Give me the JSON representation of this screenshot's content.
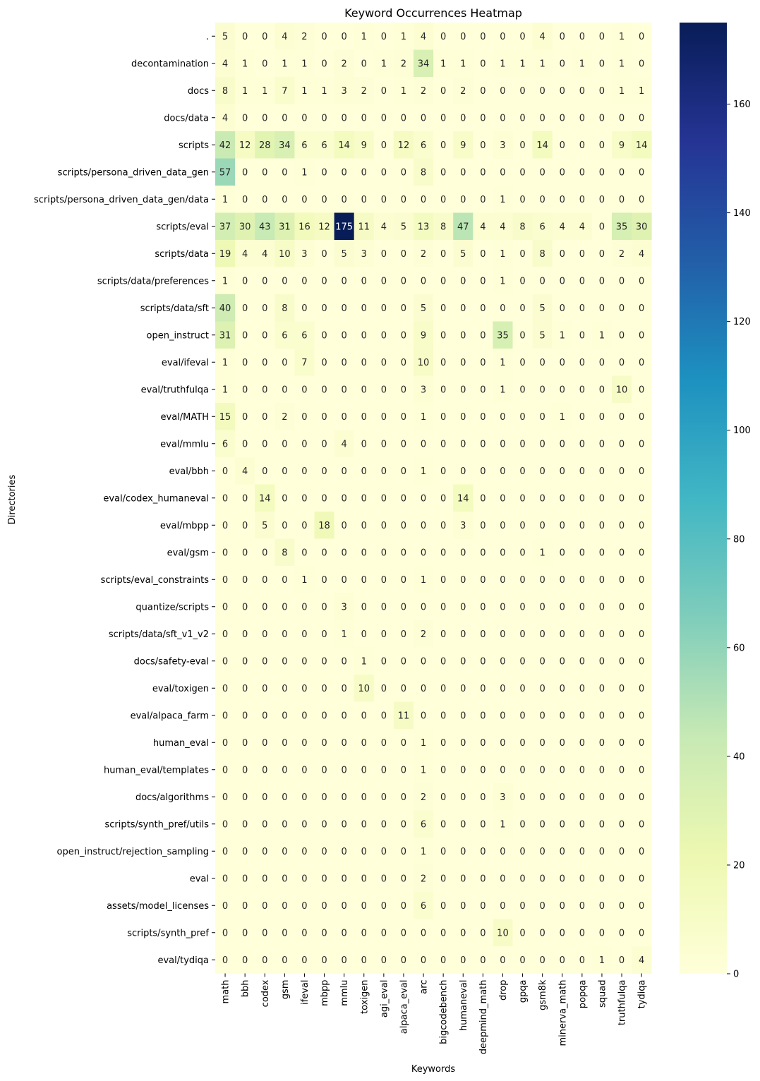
{
  "chart_data": {
    "type": "heatmap",
    "title": "Keyword Occurrences Heatmap",
    "xlabel": "Keywords",
    "ylabel": "Directories",
    "colormap": "YlGnBu",
    "vmin": 0,
    "vmax": 175,
    "colorbar_ticks": [
      0,
      20,
      40,
      60,
      80,
      100,
      120,
      140,
      160
    ],
    "columns": [
      "math",
      "bbh",
      "codex",
      "gsm",
      "ifeval",
      "mbpp",
      "mmlu",
      "toxigen",
      "agi_eval",
      "alpaca_eval",
      "arc",
      "bigcodebench",
      "humaneval",
      "deepmind_math",
      "drop",
      "gpqa",
      "gsm8k",
      "minerva_math",
      "popqa",
      "squad",
      "truthfulqa",
      "tydiqa"
    ],
    "rows": [
      ".",
      "decontamination",
      "docs",
      "docs/data",
      "scripts",
      "scripts/persona_driven_data_gen",
      "scripts/persona_driven_data_gen/data",
      "scripts/eval",
      "scripts/data",
      "scripts/data/preferences",
      "scripts/data/sft",
      "open_instruct",
      "eval/ifeval",
      "eval/truthfulqa",
      "eval/MATH",
      "eval/mmlu",
      "eval/bbh",
      "eval/codex_humaneval",
      "eval/mbpp",
      "eval/gsm",
      "scripts/eval_constraints",
      "quantize/scripts",
      "scripts/data/sft_v1_v2",
      "docs/safety-eval",
      "eval/toxigen",
      "eval/alpaca_farm",
      "human_eval",
      "human_eval/templates",
      "docs/algorithms",
      "scripts/synth_pref/utils",
      "open_instruct/rejection_sampling",
      "eval",
      "assets/model_licenses",
      "scripts/synth_pref",
      "eval/tydiqa"
    ],
    "values": [
      [
        5,
        0,
        0,
        4,
        2,
        0,
        0,
        1,
        0,
        1,
        4,
        0,
        0,
        0,
        0,
        0,
        4,
        0,
        0,
        0,
        1,
        0
      ],
      [
        4,
        1,
        0,
        1,
        1,
        0,
        2,
        0,
        1,
        2,
        34,
        1,
        1,
        0,
        1,
        1,
        1,
        0,
        1,
        0,
        1,
        0
      ],
      [
        8,
        1,
        1,
        7,
        1,
        1,
        3,
        2,
        0,
        1,
        2,
        0,
        2,
        0,
        0,
        0,
        0,
        0,
        0,
        0,
        1,
        1
      ],
      [
        4,
        0,
        0,
        0,
        0,
        0,
        0,
        0,
        0,
        0,
        0,
        0,
        0,
        0,
        0,
        0,
        0,
        0,
        0,
        0,
        0,
        0
      ],
      [
        42,
        12,
        28,
        34,
        6,
        6,
        14,
        9,
        0,
        12,
        6,
        0,
        9,
        0,
        3,
        0,
        14,
        0,
        0,
        0,
        9,
        14
      ],
      [
        57,
        0,
        0,
        0,
        1,
        0,
        0,
        0,
        0,
        0,
        8,
        0,
        0,
        0,
        0,
        0,
        0,
        0,
        0,
        0,
        0,
        0
      ],
      [
        1,
        0,
        0,
        0,
        0,
        0,
        0,
        0,
        0,
        0,
        0,
        0,
        0,
        0,
        1,
        0,
        0,
        0,
        0,
        0,
        0,
        0
      ],
      [
        37,
        30,
        43,
        31,
        16,
        12,
        175,
        11,
        4,
        5,
        13,
        8,
        47,
        4,
        4,
        8,
        6,
        4,
        4,
        0,
        35,
        30
      ],
      [
        19,
        4,
        4,
        10,
        3,
        0,
        5,
        3,
        0,
        0,
        2,
        0,
        5,
        0,
        1,
        0,
        8,
        0,
        0,
        0,
        2,
        4
      ],
      [
        1,
        0,
        0,
        0,
        0,
        0,
        0,
        0,
        0,
        0,
        0,
        0,
        0,
        0,
        1,
        0,
        0,
        0,
        0,
        0,
        0,
        0
      ],
      [
        40,
        0,
        0,
        8,
        0,
        0,
        0,
        0,
        0,
        0,
        5,
        0,
        0,
        0,
        0,
        0,
        5,
        0,
        0,
        0,
        0,
        0
      ],
      [
        31,
        0,
        0,
        6,
        6,
        0,
        0,
        0,
        0,
        0,
        9,
        0,
        0,
        0,
        35,
        0,
        5,
        1,
        0,
        1,
        0,
        0
      ],
      [
        1,
        0,
        0,
        0,
        7,
        0,
        0,
        0,
        0,
        0,
        10,
        0,
        0,
        0,
        1,
        0,
        0,
        0,
        0,
        0,
        0,
        0
      ],
      [
        1,
        0,
        0,
        0,
        0,
        0,
        0,
        0,
        0,
        0,
        3,
        0,
        0,
        0,
        1,
        0,
        0,
        0,
        0,
        0,
        10,
        0
      ],
      [
        15,
        0,
        0,
        2,
        0,
        0,
        0,
        0,
        0,
        0,
        1,
        0,
        0,
        0,
        0,
        0,
        0,
        1,
        0,
        0,
        0,
        0
      ],
      [
        6,
        0,
        0,
        0,
        0,
        0,
        4,
        0,
        0,
        0,
        0,
        0,
        0,
        0,
        0,
        0,
        0,
        0,
        0,
        0,
        0,
        0
      ],
      [
        0,
        4,
        0,
        0,
        0,
        0,
        0,
        0,
        0,
        0,
        1,
        0,
        0,
        0,
        0,
        0,
        0,
        0,
        0,
        0,
        0,
        0
      ],
      [
        0,
        0,
        14,
        0,
        0,
        0,
        0,
        0,
        0,
        0,
        0,
        0,
        14,
        0,
        0,
        0,
        0,
        0,
        0,
        0,
        0,
        0
      ],
      [
        0,
        0,
        5,
        0,
        0,
        18,
        0,
        0,
        0,
        0,
        0,
        0,
        3,
        0,
        0,
        0,
        0,
        0,
        0,
        0,
        0,
        0
      ],
      [
        0,
        0,
        0,
        8,
        0,
        0,
        0,
        0,
        0,
        0,
        0,
        0,
        0,
        0,
        0,
        0,
        1,
        0,
        0,
        0,
        0,
        0
      ],
      [
        0,
        0,
        0,
        0,
        1,
        0,
        0,
        0,
        0,
        0,
        1,
        0,
        0,
        0,
        0,
        0,
        0,
        0,
        0,
        0,
        0,
        0
      ],
      [
        0,
        0,
        0,
        0,
        0,
        0,
        3,
        0,
        0,
        0,
        0,
        0,
        0,
        0,
        0,
        0,
        0,
        0,
        0,
        0,
        0,
        0
      ],
      [
        0,
        0,
        0,
        0,
        0,
        0,
        1,
        0,
        0,
        0,
        2,
        0,
        0,
        0,
        0,
        0,
        0,
        0,
        0,
        0,
        0,
        0
      ],
      [
        0,
        0,
        0,
        0,
        0,
        0,
        0,
        1,
        0,
        0,
        0,
        0,
        0,
        0,
        0,
        0,
        0,
        0,
        0,
        0,
        0,
        0
      ],
      [
        0,
        0,
        0,
        0,
        0,
        0,
        0,
        10,
        0,
        0,
        0,
        0,
        0,
        0,
        0,
        0,
        0,
        0,
        0,
        0,
        0,
        0
      ],
      [
        0,
        0,
        0,
        0,
        0,
        0,
        0,
        0,
        0,
        11,
        0,
        0,
        0,
        0,
        0,
        0,
        0,
        0,
        0,
        0,
        0,
        0
      ],
      [
        0,
        0,
        0,
        0,
        0,
        0,
        0,
        0,
        0,
        0,
        1,
        0,
        0,
        0,
        0,
        0,
        0,
        0,
        0,
        0,
        0,
        0
      ],
      [
        0,
        0,
        0,
        0,
        0,
        0,
        0,
        0,
        0,
        0,
        1,
        0,
        0,
        0,
        0,
        0,
        0,
        0,
        0,
        0,
        0,
        0
      ],
      [
        0,
        0,
        0,
        0,
        0,
        0,
        0,
        0,
        0,
        0,
        2,
        0,
        0,
        0,
        3,
        0,
        0,
        0,
        0,
        0,
        0,
        0
      ],
      [
        0,
        0,
        0,
        0,
        0,
        0,
        0,
        0,
        0,
        0,
        6,
        0,
        0,
        0,
        1,
        0,
        0,
        0,
        0,
        0,
        0,
        0
      ],
      [
        0,
        0,
        0,
        0,
        0,
        0,
        0,
        0,
        0,
        0,
        1,
        0,
        0,
        0,
        0,
        0,
        0,
        0,
        0,
        0,
        0,
        0
      ],
      [
        0,
        0,
        0,
        0,
        0,
        0,
        0,
        0,
        0,
        0,
        2,
        0,
        0,
        0,
        0,
        0,
        0,
        0,
        0,
        0,
        0,
        0
      ],
      [
        0,
        0,
        0,
        0,
        0,
        0,
        0,
        0,
        0,
        0,
        6,
        0,
        0,
        0,
        0,
        0,
        0,
        0,
        0,
        0,
        0,
        0
      ],
      [
        0,
        0,
        0,
        0,
        0,
        0,
        0,
        0,
        0,
        0,
        0,
        0,
        0,
        0,
        10,
        0,
        0,
        0,
        0,
        0,
        0,
        0
      ],
      [
        0,
        0,
        0,
        0,
        0,
        0,
        0,
        0,
        0,
        0,
        0,
        0,
        0,
        0,
        0,
        0,
        0,
        0,
        0,
        1,
        0,
        4
      ]
    ]
  }
}
